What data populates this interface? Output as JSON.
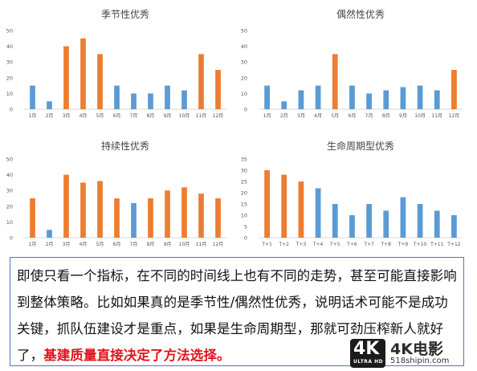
{
  "colors": {
    "blue": "#5b9bd5",
    "orange": "#ed7d31",
    "axis": "#d9d9d9",
    "red_text": "#e0151b",
    "border": "#4a78c2"
  },
  "chart_data": [
    {
      "type": "bar",
      "title": "季节性优秀",
      "categories": [
        "1月",
        "2月",
        "3月",
        "4月",
        "5月",
        "6月",
        "7月",
        "8月",
        "9月",
        "10月",
        "11月",
        "12月"
      ],
      "values": [
        15,
        5,
        40,
        45,
        35,
        15,
        10,
        10,
        15,
        12,
        35,
        25
      ],
      "highlight": [
        false,
        false,
        true,
        true,
        true,
        false,
        false,
        false,
        false,
        false,
        true,
        true
      ],
      "yticks": [
        0,
        10,
        20,
        30,
        40,
        50
      ],
      "ylim": [
        0,
        50
      ],
      "grid": false
    },
    {
      "type": "bar",
      "title": "偶然性优秀",
      "categories": [
        "1月",
        "2月",
        "3月",
        "4月",
        "5月",
        "6月",
        "7月",
        "8月",
        "9月",
        "10月",
        "11月",
        "12月"
      ],
      "values": [
        15,
        5,
        12,
        15,
        35,
        15,
        10,
        12,
        14,
        15,
        12,
        25
      ],
      "highlight": [
        false,
        false,
        false,
        false,
        true,
        false,
        false,
        false,
        false,
        false,
        false,
        true
      ],
      "yticks": [
        0,
        10,
        20,
        30,
        40,
        50
      ],
      "ylim": [
        0,
        50
      ],
      "grid": false
    },
    {
      "type": "bar",
      "title": "持续性优秀",
      "categories": [
        "1月",
        "2月",
        "3月",
        "4月",
        "5月",
        "6月",
        "7月",
        "8月",
        "9月",
        "10月",
        "11月",
        "12月"
      ],
      "values": [
        25,
        5,
        40,
        35,
        36,
        25,
        22,
        25,
        30,
        32,
        28,
        25
      ],
      "highlight": [
        true,
        false,
        true,
        true,
        true,
        true,
        false,
        true,
        true,
        true,
        true,
        true
      ],
      "yticks": [
        0,
        10,
        20,
        30,
        40,
        50
      ],
      "ylim": [
        0,
        50
      ],
      "grid": false
    },
    {
      "type": "bar",
      "title": "生命周期型优秀",
      "categories": [
        "T+1",
        "T+2",
        "T+3",
        "T+4",
        "T+5",
        "T+6",
        "T+7",
        "T+8",
        "T+9",
        "T+10",
        "T+11",
        "T+12"
      ],
      "values": [
        30,
        28,
        25,
        22,
        15,
        10,
        15,
        12,
        18,
        15,
        12,
        10
      ],
      "highlight": [
        true,
        true,
        true,
        false,
        false,
        false,
        false,
        false,
        false,
        false,
        false,
        false
      ],
      "yticks": [
        0,
        5,
        10,
        15,
        20,
        25,
        30,
        35
      ],
      "ylim": [
        0,
        35
      ],
      "grid": false
    }
  ],
  "textbox": {
    "text": "即使只看一个指标，在不同的时间线上也有不同的走势，甚至可能直接影响到整体策略。比如如果真的是季节性/偶然性优秀，说明话术可能不是成功关键，抓队伍建设才是重点，如果是生命周期型，那就可劲压榨新人就好了，",
    "highlight": "基建质量直接决定了方法选择。"
  },
  "watermark": {
    "logo_big": "4K",
    "logo_sub": "ULTRA HD",
    "brand": "4K电影",
    "site": "518shipin.com"
  }
}
